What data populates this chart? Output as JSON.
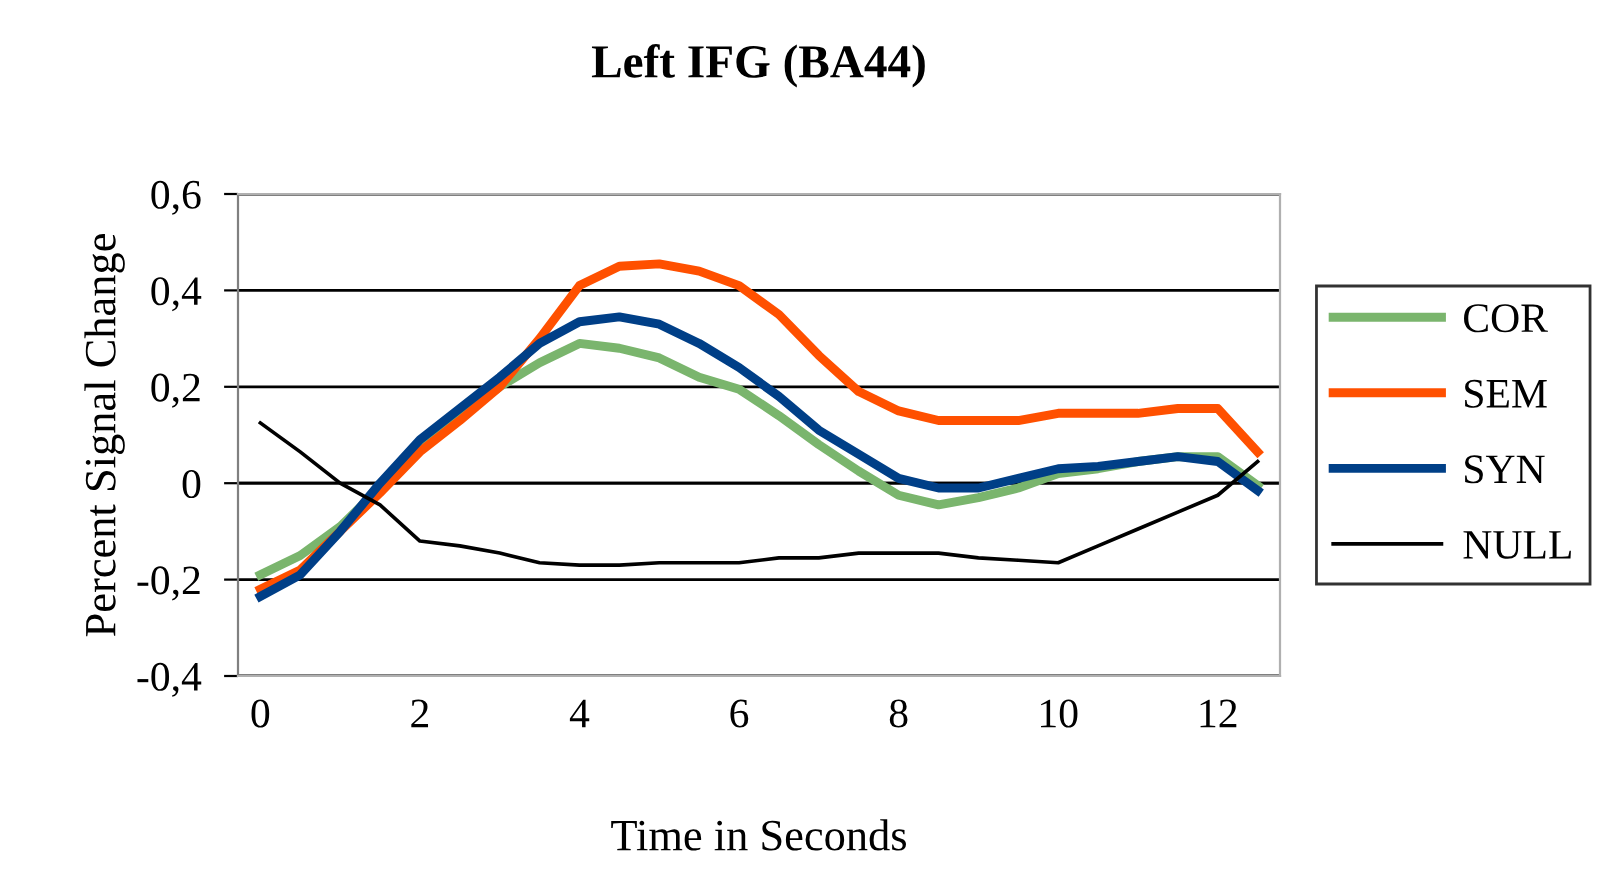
{
  "chart_data": {
    "type": "line",
    "title": "Left IFG (BA44)",
    "xlabel": "Time in Seconds",
    "ylabel": "Percent Signal Change",
    "x": [
      0,
      0.5,
      1,
      1.5,
      2,
      2.5,
      3,
      3.5,
      4,
      4.5,
      5,
      5.5,
      6,
      6.5,
      7,
      7.5,
      8,
      8.5,
      9,
      9.5,
      10,
      10.5,
      11,
      11.5,
      12,
      12.5
    ],
    "series": [
      {
        "name": "COR",
        "color": "#7ab56d",
        "values": [
          -0.19,
          -0.15,
          -0.09,
          -0.01,
          0.085,
          0.14,
          0.2,
          0.25,
          0.29,
          0.28,
          0.26,
          0.22,
          0.195,
          0.14,
          0.08,
          0.025,
          -0.025,
          -0.045,
          -0.03,
          -0.01,
          0.02,
          0.03,
          0.045,
          0.055,
          0.055,
          -0.005
        ]
      },
      {
        "name": "SEM",
        "color": "#ff5000",
        "values": [
          -0.22,
          -0.18,
          -0.1,
          -0.02,
          0.065,
          0.13,
          0.2,
          0.3,
          0.41,
          0.45,
          0.455,
          0.44,
          0.41,
          0.35,
          0.265,
          0.19,
          0.15,
          0.13,
          0.13,
          0.13,
          0.145,
          0.145,
          0.145,
          0.155,
          0.155,
          0.065
        ]
      },
      {
        "name": "SYN",
        "color": "#003f87",
        "values": [
          -0.235,
          -0.19,
          -0.1,
          0,
          0.09,
          0.155,
          0.22,
          0.29,
          0.335,
          0.345,
          0.33,
          0.29,
          0.24,
          0.18,
          0.11,
          0.06,
          0.01,
          -0.01,
          -0.01,
          0.01,
          0.03,
          0.035,
          0.045,
          0.055,
          0.045,
          -0.015
        ]
      },
      {
        "name": "NULL",
        "color": "#000000",
        "values": [
          0.125,
          0.065,
          0,
          -0.045,
          -0.12,
          -0.13,
          -0.145,
          -0.165,
          -0.17,
          -0.17,
          -0.165,
          -0.165,
          -0.165,
          -0.155,
          -0.155,
          -0.145,
          -0.145,
          -0.145,
          -0.155,
          -0.16,
          -0.165,
          -0.13,
          -0.095,
          -0.06,
          -0.025,
          0.045
        ]
      }
    ],
    "xlim": [
      -0.28,
      12.78
    ],
    "xticks": [
      0,
      2,
      4,
      6,
      8,
      10,
      12
    ],
    "ylim": [
      -0.4,
      0.6
    ],
    "yticks": [
      {
        "value": -0.4,
        "label": "-0,4"
      },
      {
        "value": -0.2,
        "label": "-0,2"
      },
      {
        "value": 0,
        "label": "0"
      },
      {
        "value": 0.2,
        "label": "0,2"
      },
      {
        "value": 0.4,
        "label": "0,4"
      },
      {
        "value": 0.6,
        "label": "0,6"
      }
    ],
    "grid": "y",
    "legend": "right",
    "marker": "none",
    "line_style": "solid"
  }
}
